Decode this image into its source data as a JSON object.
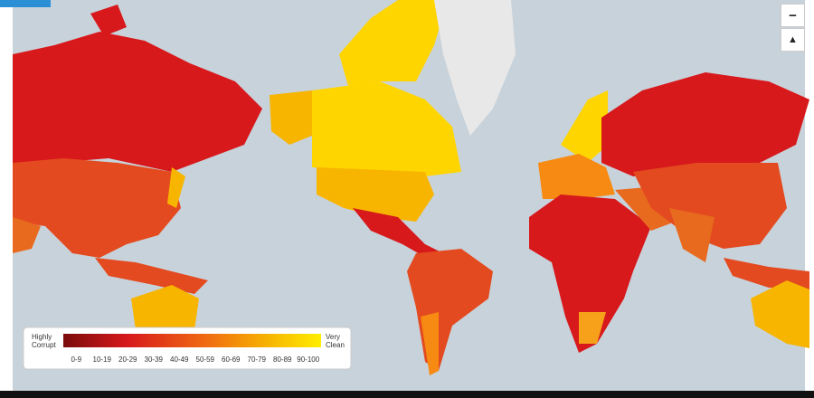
{
  "legend": {
    "low_label": [
      "Highly",
      "Corrupt"
    ],
    "high_label": [
      "Very",
      "Clean"
    ],
    "ranges": [
      "0-9",
      "10-19",
      "20-29",
      "30-39",
      "40-49",
      "50-59",
      "60-69",
      "70-79",
      "80-89",
      "90-100"
    ]
  },
  "controls": {
    "zoom_out": "−",
    "reset": "▲"
  }
}
